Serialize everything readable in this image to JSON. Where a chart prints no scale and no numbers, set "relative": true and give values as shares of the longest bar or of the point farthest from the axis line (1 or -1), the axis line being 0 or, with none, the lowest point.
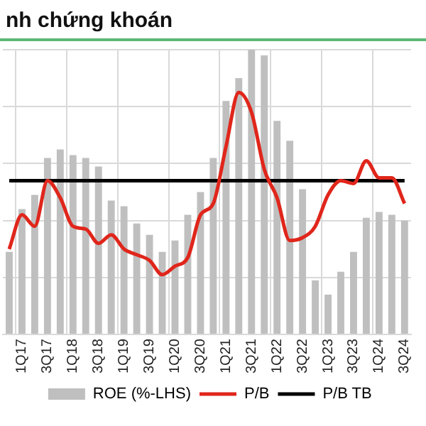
{
  "chart_data": {
    "type": "bar",
    "title": "nh chứng khoán",
    "relative": true,
    "grid": true,
    "legend": "bottom",
    "categories": [
      null,
      "1Q17",
      null,
      "3Q17",
      null,
      "1Q18",
      null,
      "3Q18",
      null,
      "1Q19",
      null,
      "3Q19",
      null,
      "1Q20",
      null,
      "3Q20",
      null,
      "1Q21",
      null,
      "3Q21",
      null,
      "1Q22",
      null,
      "3Q22",
      null,
      "1Q23",
      null,
      "3Q23",
      null,
      "1Q24",
      null,
      "3Q24"
    ],
    "series": [
      {
        "name": "ROE (%-LHS)",
        "color": "#bfbfbf",
        "values": [
          0.29,
          0.44,
          0.49,
          0.62,
          0.65,
          0.63,
          0.62,
          0.59,
          0.47,
          0.45,
          0.39,
          0.35,
          0.29,
          0.33,
          0.42,
          0.5,
          0.62,
          0.82,
          0.9,
          1,
          0.98,
          0.75,
          0.68,
          0.51,
          0.19,
          0.14,
          0.22,
          0.29,
          0.41,
          0.43,
          0.42,
          0.4
        ]
      },
      {
        "name": "P/B",
        "type": "line",
        "color": "#e0261b",
        "values": [
          0.3,
          0.42,
          0.38,
          0.54,
          0.48,
          0.38,
          0.37,
          0.32,
          0.35,
          0.3,
          0.28,
          0.26,
          0.21,
          0.24,
          0.27,
          0.42,
          0.46,
          0.66,
          0.85,
          0.78,
          0.58,
          0.48,
          0.33,
          0.34,
          0.38,
          0.49,
          0.54,
          0.53,
          0.61,
          0.55,
          0.55,
          0.46
        ]
      },
      {
        "name": "P/B TB",
        "type": "line",
        "color": "#000000",
        "values": [
          0.54,
          0.54,
          0.54,
          0.54,
          0.54,
          0.54,
          0.54,
          0.54,
          0.54,
          0.54,
          0.54,
          0.54,
          0.54,
          0.54,
          0.54,
          0.54,
          0.54,
          0.54,
          0.54,
          0.54,
          0.54,
          0.54,
          0.54,
          0.54,
          0.54,
          0.54,
          0.54,
          0.54,
          0.54,
          0.54,
          0.54,
          0.54
        ]
      }
    ]
  }
}
